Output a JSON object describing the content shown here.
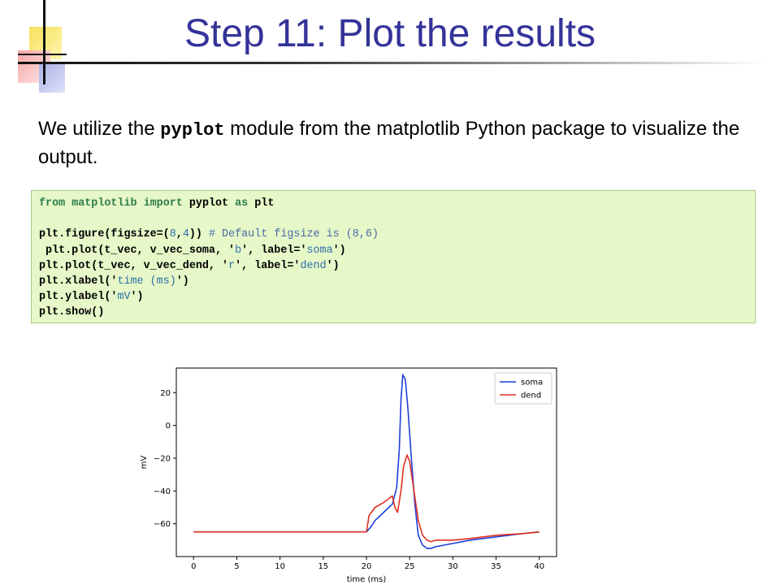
{
  "slide": {
    "title": "Step 11: Plot the results",
    "intro_before": "We utilize the ",
    "intro_code": "pyplot",
    "intro_after": " module from the matplotlib Python package to visualize the output."
  },
  "code": {
    "l1_kw1": "from",
    "l1_mod": "matplotlib",
    "l1_kw2": "import",
    "l1_rest": "pyplot",
    "l1_kw3": "as",
    "l1_alias": "plt",
    "l2_a": "plt.figure(figsize=(",
    "l2_n1": "8",
    "l2_b": ",",
    "l2_n2": "4",
    "l2_c": ")) ",
    "l2_comment": "# Default figsize is (8,6)",
    "l3_a": " plt.plot(t_vec, v_vec_soma, '",
    "l3_s1": "b",
    "l3_b": "', label='",
    "l3_s2": "soma",
    "l3_c": "')",
    "l4_a": "plt.plot(t_vec, v_vec_dend, '",
    "l4_s1": "r",
    "l4_b": "', label='",
    "l4_s2": "dend",
    "l4_c": "')",
    "l5_a": "plt.xlabel('",
    "l5_s": "time (ms)",
    "l5_b": "')",
    "l6_a": "plt.ylabel('",
    "l6_s": "mV",
    "l6_b": "')",
    "l7": "plt.show()"
  },
  "chart_data": {
    "type": "line",
    "xlabel": "time (ms)",
    "ylabel": "mV",
    "xlim": [
      -2,
      42
    ],
    "ylim": [
      -80,
      35
    ],
    "xticks": [
      0,
      5,
      10,
      15,
      20,
      25,
      30,
      35,
      40
    ],
    "yticks": [
      20,
      0,
      -20,
      -40,
      -60
    ],
    "ytick_labels": [
      "20",
      "0",
      "−20",
      "−40",
      "−60"
    ],
    "legend_position": "top-right",
    "grid": false,
    "series": [
      {
        "name": "soma",
        "color": "#1f3fd8",
        "x": [
          0,
          20,
          20.5,
          21,
          22,
          23,
          23.5,
          23.8,
          24,
          24.2,
          24.5,
          24.8,
          25.2,
          25.6,
          26,
          26.5,
          27,
          27.5,
          28,
          29,
          30,
          32,
          35,
          38,
          40
        ],
        "y": [
          -65,
          -65,
          -62,
          -58,
          -53,
          -48,
          -38,
          -15,
          15,
          31,
          28,
          10,
          -20,
          -48,
          -67,
          -73,
          -75,
          -75,
          -74,
          -73,
          -72,
          -70,
          -68,
          -66,
          -65
        ]
      },
      {
        "name": "dend",
        "color": "#e03020",
        "x": [
          0,
          20,
          20.3,
          21,
          22,
          23,
          23.3,
          23.6,
          24,
          24.3,
          24.7,
          25,
          25.5,
          26,
          26.5,
          27,
          27.5,
          28,
          30,
          32,
          35,
          38,
          40
        ],
        "y": [
          -65,
          -65,
          -55,
          -50,
          -47,
          -43,
          -50,
          -53,
          -40,
          -25,
          -18,
          -22,
          -40,
          -58,
          -67,
          -70,
          -71,
          -70,
          -70,
          -69,
          -67,
          -66,
          -65
        ]
      }
    ]
  }
}
